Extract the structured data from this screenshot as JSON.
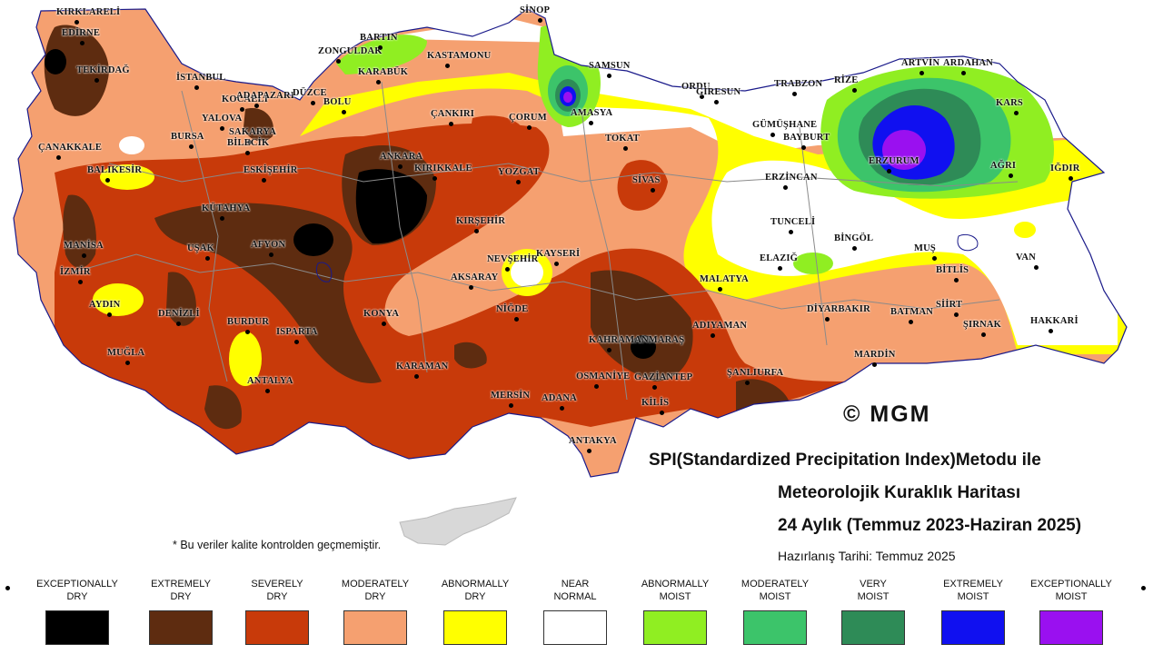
{
  "title": {
    "line1": "SPI(Standardized Precipitation Index)Metodu ile",
    "line2": "Meteorolojik Kuraklık Haritası",
    "line3": "24 Aylık (Temmuz 2023-Haziran 2025)",
    "prepared": "Hazırlanış Tarihi: Temmuz 2025"
  },
  "copyright": "© MGM",
  "note": "* Bu veriler kalite kontrolden geçmemiştir.",
  "legend": [
    {
      "label": "EXCEPTIONALLY\nDRY",
      "color": "#000000"
    },
    {
      "label": "EXTREMELY\nDRY",
      "color": "#5e2c10"
    },
    {
      "label": "SEVERELY\nDRY",
      "color": "#c83a0a"
    },
    {
      "label": "MODERATELY\nDRY",
      "color": "#f5a070"
    },
    {
      "label": "ABNORMALLY\nDRY",
      "color": "#ffff00"
    },
    {
      "label": "NEAR\nNORMAL",
      "color": "#ffffff"
    },
    {
      "label": "ABNORMALLY\nMOIST",
      "color": "#90ee22"
    },
    {
      "label": "MODERATELY\nMOIST",
      "color": "#3cc46a"
    },
    {
      "label": "VERY\nMOIST",
      "color": "#2e8b57"
    },
    {
      "label": "EXTREMELY\nMOIST",
      "color": "#1010f0"
    },
    {
      "label": "EXCEPTIONALLY\nMOIST",
      "color": "#9a10f0"
    }
  ],
  "cities": [
    "KIRKLARELİ",
    "EDİRNE",
    "TEKİRDAĞ",
    "İSTANBUL",
    "ÇANAKKALE",
    "BALIKESİR",
    "BURSA",
    "YALOVA",
    "KOCAELİ",
    "SAKARYA",
    "ADAPAZARI",
    "BİLECİK",
    "DÜZCE",
    "BOLU",
    "ZONGULDAK",
    "BARTIN",
    "KARABÜK",
    "KASTAMONU",
    "SİNOP",
    "SAMSUN",
    "AMASYA",
    "ÇORUM",
    "ÇANKIRI",
    "TOKAT",
    "ORDU",
    "GİRESUN",
    "TRABZON",
    "RİZE",
    "ARTVİN",
    "ARDAHAN",
    "KARS",
    "GÜMÜŞHANE",
    "BAYBURT",
    "ERZURUM",
    "AĞRI",
    "IĞDIR",
    "ERZİNCAN",
    "TUNCELİ",
    "BİNGÖL",
    "MUŞ",
    "VAN",
    "BİTLİS",
    "ELAZIĞ",
    "MALATYA",
    "SİİRT",
    "HAKKARİ",
    "ŞIRNAK",
    "BATMAN",
    "DİYARBAKIR",
    "MARDİN",
    "ADIYAMAN",
    "ŞANLIURFA",
    "GAZİANTEP",
    "KİLİS",
    "OSMANİYE",
    "KAHRAMANMARAŞ",
    "ADANA",
    "MERSİN",
    "ANTAKYA",
    "KARAMAN",
    "NİĞDE",
    "AKSARAY",
    "NEVŞEHİR",
    "KAYSERİ",
    "SİVAS",
    "YOZGAT",
    "KIRŞEHİR",
    "KIRIKKALE",
    "ANKARA",
    "ESKİŞEHİR",
    "KÜTAHYA",
    "UŞAK",
    "AFYON",
    "MANİSA",
    "İZMİR",
    "AYDIN",
    "DENİZLİ",
    "MUĞLA",
    "BURDUR",
    "ISPARTA",
    "ANTALYA",
    "KONYA"
  ]
}
